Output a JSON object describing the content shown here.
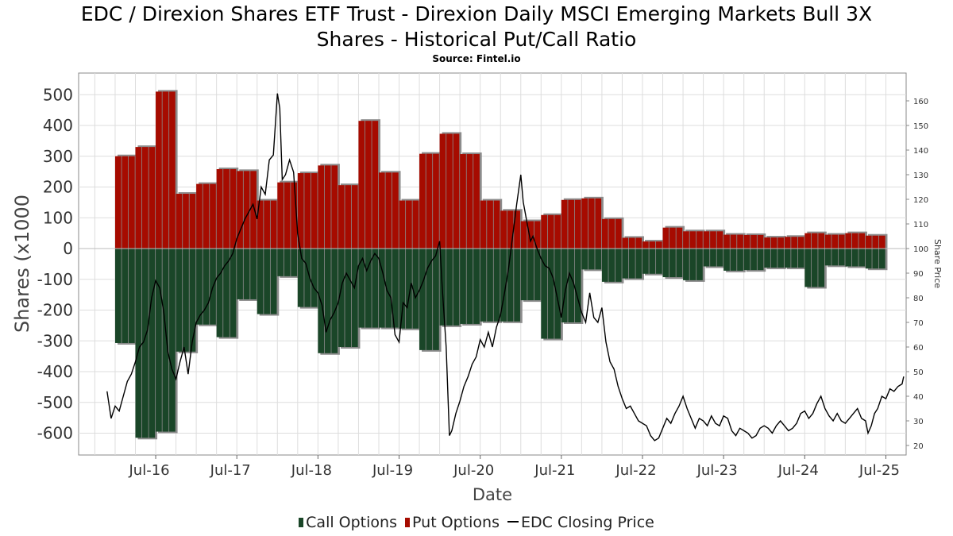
{
  "title_line1": "EDC / Direxion Shares ETF Trust - Direxion Daily MSCI Emerging Markets Bull 3X",
  "title_line2": "Shares - Historical Put/Call Ratio",
  "subtitle": "Source: Fintel.io",
  "colors": {
    "call": "#1a4628",
    "put": "#a60b00",
    "price": "#000000",
    "grid": "#dddddd",
    "shadow": "#8c8c8c"
  },
  "legend": {
    "call": "Call Options",
    "put": "Put Options",
    "price": "EDC Closing Price"
  },
  "chart_data": {
    "type": "bar",
    "xlabel": "Date",
    "ylabel": "Shares (x1000",
    "y2label": "Share Price",
    "ylim": [
      -670,
      565
    ],
    "y2lim": [
      16,
      166
    ],
    "xlim": [
      2015.55,
      2025.75
    ],
    "yticks": [
      "500",
      "400",
      "300",
      "200",
      "100",
      "0",
      "-100",
      "-200",
      "-300",
      "-400",
      "-500",
      "-600"
    ],
    "y2ticks": [
      "160",
      "150",
      "140",
      "130",
      "120",
      "110",
      "100",
      "90",
      "80",
      "70",
      "60",
      "50",
      "40",
      "30",
      "20"
    ],
    "xticks": [
      {
        "label": "Jul-16",
        "x": 2016.5
      },
      {
        "label": "Jul-17",
        "x": 2017.5
      },
      {
        "label": "Jul-18",
        "x": 2018.5
      },
      {
        "label": "Jul-19",
        "x": 2019.5
      },
      {
        "label": "Jul-20",
        "x": 2020.5
      },
      {
        "label": "Jul-21",
        "x": 2021.5
      },
      {
        "label": "Jul-22",
        "x": 2022.5
      },
      {
        "label": "Jul-23",
        "x": 2023.5
      },
      {
        "label": "Jul-24",
        "x": 2024.5
      },
      {
        "label": "Jul-25",
        "x": 2025.5
      }
    ],
    "bar_width_years": 0.25,
    "series": [
      {
        "name": "Put Options",
        "points": [
          [
            2016.0,
            300
          ],
          [
            2016.25,
            330
          ],
          [
            2016.5,
            510
          ],
          [
            2016.75,
            178
          ],
          [
            2017.0,
            210
          ],
          [
            2017.25,
            258
          ],
          [
            2017.5,
            252
          ],
          [
            2017.75,
            156
          ],
          [
            2018.0,
            215
          ],
          [
            2018.25,
            245
          ],
          [
            2018.5,
            270
          ],
          [
            2018.75,
            206
          ],
          [
            2019.0,
            415
          ],
          [
            2019.25,
            247
          ],
          [
            2019.5,
            156
          ],
          [
            2019.75,
            308
          ],
          [
            2020.0,
            373
          ],
          [
            2020.25,
            307
          ],
          [
            2020.5,
            156
          ],
          [
            2020.75,
            123
          ],
          [
            2021.0,
            89
          ],
          [
            2021.25,
            109
          ],
          [
            2021.5,
            158
          ],
          [
            2021.75,
            163
          ],
          [
            2022.0,
            96
          ],
          [
            2022.25,
            35
          ],
          [
            2022.5,
            23
          ],
          [
            2022.75,
            68
          ],
          [
            2023.0,
            56
          ],
          [
            2023.25,
            56
          ],
          [
            2023.5,
            45
          ],
          [
            2023.75,
            44
          ],
          [
            2024.0,
            36
          ],
          [
            2024.25,
            38
          ],
          [
            2024.5,
            50
          ],
          [
            2024.75,
            45
          ],
          [
            2025.0,
            50
          ],
          [
            2025.25,
            42
          ]
        ]
      },
      {
        "name": "Call Options",
        "points": [
          [
            2016.0,
            -307
          ],
          [
            2016.25,
            -615
          ],
          [
            2016.5,
            -595
          ],
          [
            2016.75,
            -335
          ],
          [
            2017.0,
            -247
          ],
          [
            2017.25,
            -288
          ],
          [
            2017.5,
            -165
          ],
          [
            2017.75,
            -213
          ],
          [
            2018.0,
            -90
          ],
          [
            2018.25,
            -190
          ],
          [
            2018.5,
            -340
          ],
          [
            2018.75,
            -320
          ],
          [
            2019.0,
            -257
          ],
          [
            2019.25,
            -257
          ],
          [
            2019.5,
            -260
          ],
          [
            2019.75,
            -330
          ],
          [
            2020.0,
            -250
          ],
          [
            2020.25,
            -245
          ],
          [
            2020.5,
            -237
          ],
          [
            2020.75,
            -237
          ],
          [
            2021.0,
            -168
          ],
          [
            2021.25,
            -293
          ],
          [
            2021.5,
            -240
          ],
          [
            2021.75,
            -68
          ],
          [
            2022.0,
            -108
          ],
          [
            2022.25,
            -97
          ],
          [
            2022.5,
            -82
          ],
          [
            2022.75,
            -93
          ],
          [
            2023.0,
            -103
          ],
          [
            2023.25,
            -58
          ],
          [
            2023.5,
            -72
          ],
          [
            2023.75,
            -70
          ],
          [
            2024.0,
            -62
          ],
          [
            2024.25,
            -62
          ],
          [
            2024.5,
            -125
          ],
          [
            2024.75,
            -55
          ],
          [
            2025.0,
            -58
          ],
          [
            2025.25,
            -65
          ]
        ]
      },
      {
        "name": "EDC Closing Price",
        "axis": "right",
        "points": [
          [
            2015.9,
            42
          ],
          [
            2015.95,
            31
          ],
          [
            2016.0,
            36
          ],
          [
            2016.05,
            34
          ],
          [
            2016.1,
            40
          ],
          [
            2016.15,
            46
          ],
          [
            2016.2,
            49
          ],
          [
            2016.25,
            54
          ],
          [
            2016.3,
            60
          ],
          [
            2016.35,
            62
          ],
          [
            2016.4,
            67
          ],
          [
            2016.45,
            80
          ],
          [
            2016.5,
            87
          ],
          [
            2016.55,
            84
          ],
          [
            2016.6,
            74
          ],
          [
            2016.65,
            58
          ],
          [
            2016.7,
            51
          ],
          [
            2016.75,
            47
          ],
          [
            2016.8,
            54
          ],
          [
            2016.85,
            60
          ],
          [
            2016.9,
            49
          ],
          [
            2016.95,
            62
          ],
          [
            2017.0,
            70
          ],
          [
            2017.05,
            73
          ],
          [
            2017.1,
            75
          ],
          [
            2017.15,
            78
          ],
          [
            2017.2,
            84
          ],
          [
            2017.25,
            88
          ],
          [
            2017.3,
            90
          ],
          [
            2017.35,
            93
          ],
          [
            2017.4,
            95
          ],
          [
            2017.45,
            98
          ],
          [
            2017.5,
            104
          ],
          [
            2017.55,
            108
          ],
          [
            2017.6,
            112
          ],
          [
            2017.65,
            115
          ],
          [
            2017.7,
            118
          ],
          [
            2017.75,
            112
          ],
          [
            2017.8,
            125
          ],
          [
            2017.85,
            122
          ],
          [
            2017.9,
            136
          ],
          [
            2017.95,
            138
          ],
          [
            2018.0,
            163
          ],
          [
            2018.03,
            157
          ],
          [
            2018.06,
            128
          ],
          [
            2018.1,
            130
          ],
          [
            2018.15,
            136
          ],
          [
            2018.2,
            131
          ],
          [
            2018.25,
            106
          ],
          [
            2018.3,
            96
          ],
          [
            2018.35,
            94
          ],
          [
            2018.4,
            88
          ],
          [
            2018.45,
            84
          ],
          [
            2018.5,
            82
          ],
          [
            2018.55,
            77
          ],
          [
            2018.6,
            66
          ],
          [
            2018.65,
            71
          ],
          [
            2018.7,
            74
          ],
          [
            2018.75,
            78
          ],
          [
            2018.8,
            86
          ],
          [
            2018.85,
            90
          ],
          [
            2018.9,
            87
          ],
          [
            2018.95,
            84
          ],
          [
            2019.0,
            93
          ],
          [
            2019.05,
            96
          ],
          [
            2019.1,
            91
          ],
          [
            2019.15,
            95
          ],
          [
            2019.2,
            98
          ],
          [
            2019.25,
            96
          ],
          [
            2019.3,
            90
          ],
          [
            2019.35,
            83
          ],
          [
            2019.4,
            80
          ],
          [
            2019.45,
            65
          ],
          [
            2019.5,
            62
          ],
          [
            2019.55,
            78
          ],
          [
            2019.6,
            76
          ],
          [
            2019.65,
            86
          ],
          [
            2019.7,
            80
          ],
          [
            2019.75,
            83
          ],
          [
            2019.8,
            87
          ],
          [
            2019.85,
            92
          ],
          [
            2019.9,
            95
          ],
          [
            2019.95,
            97
          ],
          [
            2020.0,
            103
          ],
          [
            2020.03,
            85
          ],
          [
            2020.08,
            60
          ],
          [
            2020.12,
            24
          ],
          [
            2020.15,
            26
          ],
          [
            2020.2,
            33
          ],
          [
            2020.25,
            38
          ],
          [
            2020.3,
            44
          ],
          [
            2020.35,
            48
          ],
          [
            2020.4,
            53
          ],
          [
            2020.45,
            56
          ],
          [
            2020.5,
            63
          ],
          [
            2020.55,
            60
          ],
          [
            2020.6,
            66
          ],
          [
            2020.65,
            60
          ],
          [
            2020.7,
            68
          ],
          [
            2020.75,
            73
          ],
          [
            2020.8,
            82
          ],
          [
            2020.85,
            92
          ],
          [
            2020.9,
            105
          ],
          [
            2020.95,
            118
          ],
          [
            2021.0,
            130
          ],
          [
            2021.03,
            119
          ],
          [
            2021.08,
            110
          ],
          [
            2021.12,
            103
          ],
          [
            2021.15,
            105
          ],
          [
            2021.2,
            100
          ],
          [
            2021.25,
            96
          ],
          [
            2021.3,
            93
          ],
          [
            2021.35,
            92
          ],
          [
            2021.4,
            88
          ],
          [
            2021.45,
            80
          ],
          [
            2021.5,
            72
          ],
          [
            2021.55,
            83
          ],
          [
            2021.6,
            90
          ],
          [
            2021.65,
            86
          ],
          [
            2021.7,
            80
          ],
          [
            2021.75,
            74
          ],
          [
            2021.8,
            70
          ],
          [
            2021.85,
            82
          ],
          [
            2021.9,
            72
          ],
          [
            2021.95,
            70
          ],
          [
            2022.0,
            76
          ],
          [
            2022.05,
            62
          ],
          [
            2022.1,
            54
          ],
          [
            2022.15,
            51
          ],
          [
            2022.2,
            44
          ],
          [
            2022.25,
            39
          ],
          [
            2022.3,
            35
          ],
          [
            2022.35,
            36
          ],
          [
            2022.4,
            33
          ],
          [
            2022.45,
            30
          ],
          [
            2022.5,
            29
          ],
          [
            2022.55,
            28
          ],
          [
            2022.6,
            24
          ],
          [
            2022.65,
            22
          ],
          [
            2022.7,
            23
          ],
          [
            2022.75,
            27
          ],
          [
            2022.8,
            31
          ],
          [
            2022.85,
            29
          ],
          [
            2022.9,
            33
          ],
          [
            2022.95,
            36
          ],
          [
            2023.0,
            40
          ],
          [
            2023.05,
            35
          ],
          [
            2023.1,
            31
          ],
          [
            2023.15,
            27
          ],
          [
            2023.2,
            31
          ],
          [
            2023.25,
            30
          ],
          [
            2023.3,
            28
          ],
          [
            2023.35,
            32
          ],
          [
            2023.4,
            29
          ],
          [
            2023.45,
            28
          ],
          [
            2023.5,
            32
          ],
          [
            2023.55,
            31
          ],
          [
            2023.6,
            26
          ],
          [
            2023.65,
            24
          ],
          [
            2023.7,
            27
          ],
          [
            2023.75,
            26
          ],
          [
            2023.8,
            25
          ],
          [
            2023.85,
            23
          ],
          [
            2023.9,
            24
          ],
          [
            2023.95,
            27
          ],
          [
            2024.0,
            28
          ],
          [
            2024.05,
            27
          ],
          [
            2024.1,
            25
          ],
          [
            2024.15,
            28
          ],
          [
            2024.2,
            30
          ],
          [
            2024.25,
            28
          ],
          [
            2024.3,
            26
          ],
          [
            2024.35,
            27
          ],
          [
            2024.4,
            29
          ],
          [
            2024.45,
            33
          ],
          [
            2024.5,
            34
          ],
          [
            2024.55,
            31
          ],
          [
            2024.6,
            33
          ],
          [
            2024.65,
            37
          ],
          [
            2024.7,
            40
          ],
          [
            2024.75,
            35
          ],
          [
            2024.8,
            32
          ],
          [
            2024.85,
            30
          ],
          [
            2024.9,
            33
          ],
          [
            2024.95,
            30
          ],
          [
            2025.0,
            29
          ],
          [
            2025.05,
            31
          ],
          [
            2025.1,
            33
          ],
          [
            2025.15,
            35
          ],
          [
            2025.2,
            31
          ],
          [
            2025.25,
            30
          ],
          [
            2025.28,
            25
          ],
          [
            2025.32,
            28
          ],
          [
            2025.36,
            33
          ],
          [
            2025.4,
            35
          ],
          [
            2025.45,
            40
          ],
          [
            2025.5,
            39
          ],
          [
            2025.55,
            43
          ],
          [
            2025.6,
            42
          ],
          [
            2025.65,
            44
          ],
          [
            2025.7,
            45
          ],
          [
            2025.72,
            48
          ]
        ]
      }
    ]
  }
}
